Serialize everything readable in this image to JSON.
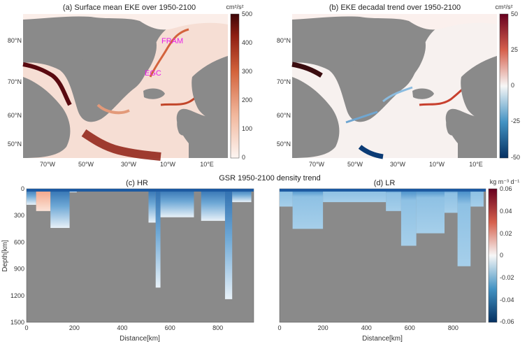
{
  "panels": {
    "a": {
      "title": "(a) Surface mean EKE over 1950-2100"
    },
    "b": {
      "title": "(b) EKE decadal trend over 1950-2100"
    },
    "c": {
      "title": "(c) HR"
    },
    "d": {
      "title": "(d) LR"
    }
  },
  "center_title": "GSR 1950-2100 density trend",
  "region_labels": [
    "FRAM",
    "EGC"
  ],
  "map_axes": {
    "lat_ticks": [
      "80°N",
      "70°N",
      "60°N",
      "50°N"
    ],
    "lon_ticks": [
      "70°W",
      "50°W",
      "30°W",
      "10°W",
      "10°E"
    ]
  },
  "colorbars": {
    "a": {
      "unit": "cm²/s²",
      "ticks": [
        "500",
        "400",
        "300",
        "200",
        "100",
        "0"
      ],
      "range": [
        0,
        500
      ]
    },
    "b": {
      "unit": "cm²/s²",
      "ticks": [
        "50",
        "25",
        "0",
        "-25",
        "-50"
      ],
      "range": [
        -50,
        50
      ]
    },
    "d": {
      "unit": "kg m⁻³ d⁻¹",
      "ticks": [
        "0.06",
        "0.04",
        "0.02",
        "0",
        "-0.02",
        "-0.04",
        "-0.06"
      ],
      "range": [
        -0.06,
        0.06
      ]
    }
  },
  "sections": {
    "ylabel": "Depth[km]",
    "xlabel": "Distance[km]",
    "y_ticks_c": [
      "0",
      "300",
      "600",
      "900",
      "1200",
      "1500"
    ],
    "y_ticks_d": [
      "0",
      "300",
      "600",
      "900",
      "1200",
      "1500"
    ],
    "x_ticks": [
      "0",
      "200",
      "400",
      "600",
      "800"
    ]
  },
  "chart_data": [
    {
      "type": "heatmap",
      "title": "(a) Surface mean EKE over 1950-2100",
      "colorbar_range": [
        0,
        500
      ],
      "colorbar_unit": "cm²/s²",
      "annotations": [
        "FRAM",
        "EGC"
      ]
    },
    {
      "type": "heatmap",
      "title": "(b) EKE decadal trend over 1950-2100",
      "colorbar_range": [
        -50,
        50
      ],
      "colorbar_unit": "cm²/s²"
    },
    {
      "type": "heatmap",
      "title": "(c) HR",
      "xlabel": "Distance[km]",
      "ylabel": "Depth[km]",
      "xlim": [
        0,
        950
      ],
      "ylim": [
        1500,
        0
      ],
      "colorbar_range": [
        -0.06,
        0.06
      ],
      "colorbar_unit": "kg m⁻³ d⁻¹",
      "columns": [
        {
          "x": [
            0,
            40
          ],
          "depth": 180,
          "sign": "neg"
        },
        {
          "x": [
            40,
            100
          ],
          "depth": 250,
          "sign": "pos_top"
        },
        {
          "x": [
            100,
            180
          ],
          "depth": 440,
          "sign": "neg"
        },
        {
          "x": [
            180,
            210
          ],
          "depth": 40,
          "sign": "neg"
        },
        {
          "x": [
            510,
            540
          ],
          "depth": 380,
          "sign": "neg"
        },
        {
          "x": [
            540,
            560
          ],
          "depth": 1110,
          "sign": "neg"
        },
        {
          "x": [
            560,
            700
          ],
          "depth": 320,
          "sign": "neg"
        },
        {
          "x": [
            730,
            830
          ],
          "depth": 360,
          "sign": "neg"
        },
        {
          "x": [
            830,
            860
          ],
          "depth": 1240,
          "sign": "neg"
        },
        {
          "x": [
            860,
            940
          ],
          "depth": 150,
          "sign": "neg"
        }
      ]
    },
    {
      "type": "heatmap",
      "title": "(d) LR",
      "xlabel": "Distance[km]",
      "xlim": [
        0,
        950
      ],
      "ylim": [
        1500,
        0
      ],
      "columns": [
        {
          "x": [
            0,
            60
          ],
          "depth": 200,
          "sign": "neg"
        },
        {
          "x": [
            60,
            200
          ],
          "depth": 450,
          "sign": "neg"
        },
        {
          "x": [
            200,
            490
          ],
          "depth": 150,
          "sign": "neg"
        },
        {
          "x": [
            490,
            560
          ],
          "depth": 250,
          "sign": "neg"
        },
        {
          "x": [
            560,
            630
          ],
          "depth": 640,
          "sign": "neg"
        },
        {
          "x": [
            630,
            760
          ],
          "depth": 500,
          "sign": "neg"
        },
        {
          "x": [
            760,
            820
          ],
          "depth": 270,
          "sign": "neg"
        },
        {
          "x": [
            820,
            880
          ],
          "depth": 870,
          "sign": "neg"
        },
        {
          "x": [
            880,
            940
          ],
          "depth": 200,
          "sign": "neg"
        }
      ]
    }
  ]
}
